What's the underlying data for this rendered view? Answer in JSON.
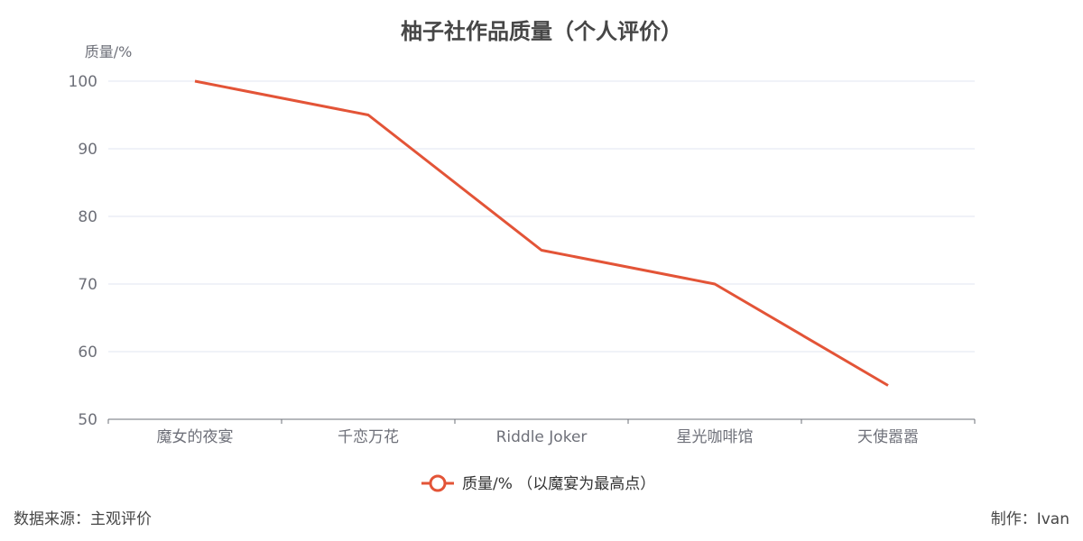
{
  "chart_data": {
    "type": "line",
    "title": "柚子社作品质量（个人评价）",
    "ylabel": "质量/%",
    "xlabel": "",
    "categories": [
      "魔女的夜宴",
      "千恋万花",
      "Riddle Joker",
      "星光咖啡馆",
      "天使嚣嚣"
    ],
    "series": [
      {
        "name": "质量/% （以魔宴为最高点）",
        "values": [
          100,
          95,
          75,
          70,
          55
        ],
        "color": "#e35437"
      }
    ],
    "ylim": [
      50,
      100
    ],
    "yticks": [
      50,
      60,
      70,
      80,
      90,
      100
    ],
    "grid": true,
    "legend_position": "bottom"
  },
  "footer": {
    "source": "数据来源：主观评价",
    "author": "制作：Ivan"
  },
  "colors": {
    "series": "#e35437",
    "grid": "#e0e6f1",
    "axis": "#6e7079"
  }
}
